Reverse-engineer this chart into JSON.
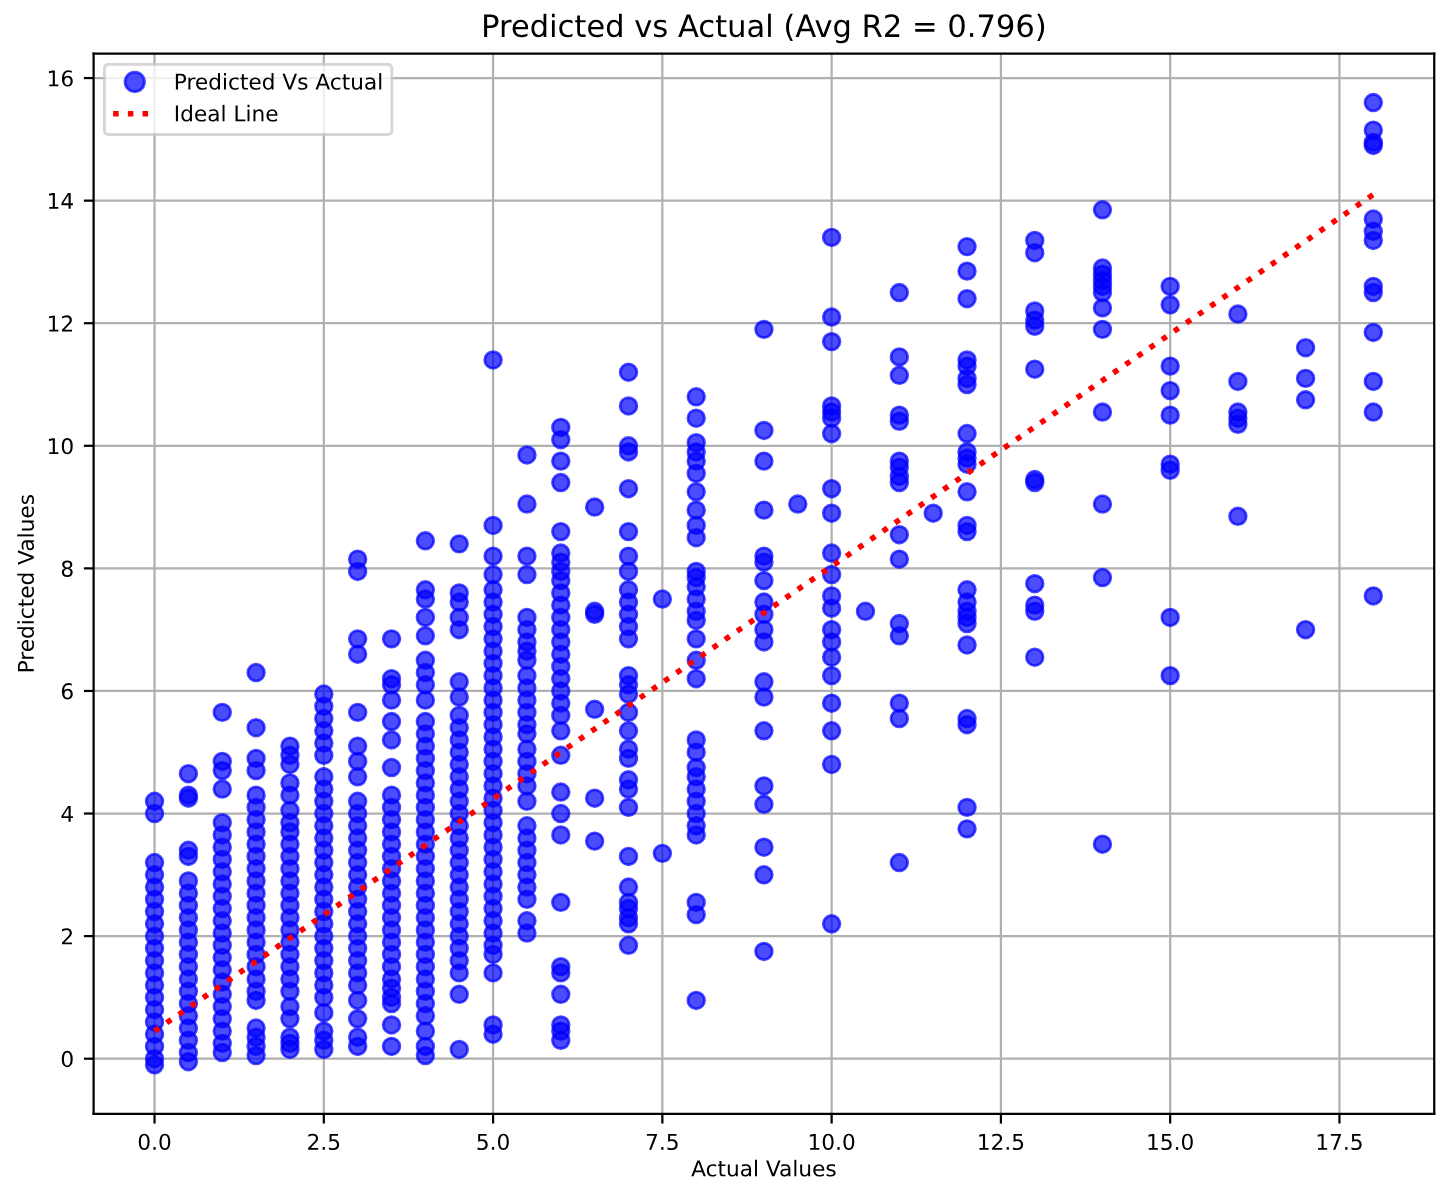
{
  "chart_data": {
    "type": "scatter",
    "title": "Predicted vs Actual (Avg R2 = 0.796)",
    "xlabel": "Actual Values",
    "ylabel": "Predicted Values",
    "xlim": [
      -0.9,
      18.9
    ],
    "ylim": [
      -0.9,
      16.4
    ],
    "xticks": [
      {
        "value": 0,
        "label": "0.0"
      },
      2.5,
      {
        "value": 5,
        "label": "5.0"
      },
      7.5,
      {
        "value": 10,
        "label": "10.0"
      },
      12.5,
      {
        "value": 15,
        "label": "15.0"
      },
      17.5
    ],
    "yticks": [
      0,
      2,
      4,
      6,
      8,
      10,
      12,
      14,
      16
    ],
    "grid": true,
    "legend": "top left",
    "series": [
      {
        "name": "Predicted Vs Actual",
        "marker": "circle",
        "color": "#0000ff",
        "x": [
          0,
          0,
          0,
          0,
          0,
          0,
          0,
          0,
          0,
          0,
          0,
          0,
          0,
          0,
          0,
          0,
          0,
          0,
          0,
          0,
          0.5,
          0.5,
          0.5,
          0.5,
          0.5,
          0.5,
          0.5,
          0.5,
          0.5,
          0.5,
          0.5,
          0.5,
          0.5,
          0.5,
          0.5,
          0.5,
          0.5,
          0.5,
          0.5,
          0.5,
          0.5,
          1,
          1,
          1,
          1,
          1,
          1,
          1,
          1,
          1,
          1,
          1,
          1,
          1,
          1,
          1,
          1,
          1,
          1,
          1,
          1,
          1,
          1,
          1,
          1,
          1.5,
          1.5,
          1.5,
          1.5,
          1.5,
          1.5,
          1.5,
          1.5,
          1.5,
          1.5,
          1.5,
          1.5,
          1.5,
          1.5,
          1.5,
          1.5,
          1.5,
          1.5,
          1.5,
          1.5,
          1.5,
          1.5,
          1.5,
          1.5,
          1.5,
          1.5,
          2,
          2,
          2,
          2,
          2,
          2,
          2,
          2,
          2,
          2,
          2,
          2,
          2,
          2,
          2,
          2,
          2,
          2,
          2,
          2,
          2,
          2,
          2,
          2,
          2,
          2,
          2.5,
          2.5,
          2.5,
          2.5,
          2.5,
          2.5,
          2.5,
          2.5,
          2.5,
          2.5,
          2.5,
          2.5,
          2.5,
          2.5,
          2.5,
          2.5,
          2.5,
          2.5,
          2.5,
          2.5,
          2.5,
          2.5,
          2.5,
          2.5,
          2.5,
          2.5,
          2.5,
          2.5,
          2.5,
          3,
          3,
          3,
          3,
          3,
          3,
          3,
          3,
          3,
          3,
          3,
          3,
          3,
          3,
          3,
          3,
          3,
          3,
          3,
          3,
          3,
          3,
          3,
          3,
          3,
          3,
          3,
          3,
          3.5,
          3.5,
          3.5,
          3.5,
          3.5,
          3.5,
          3.5,
          3.5,
          3.5,
          3.5,
          3.5,
          3.5,
          3.5,
          3.5,
          3.5,
          3.5,
          3.5,
          3.5,
          3.5,
          3.5,
          3.5,
          3.5,
          3.5,
          3.5,
          3.5,
          3.5,
          3.5,
          3.5,
          4,
          4,
          4,
          4,
          4,
          4,
          4,
          4,
          4,
          4,
          4,
          4,
          4,
          4,
          4,
          4,
          4,
          4,
          4,
          4,
          4,
          4,
          4,
          4,
          4,
          4,
          4,
          4,
          4,
          4,
          4,
          4,
          4,
          4,
          4,
          4,
          4,
          4.5,
          4.5,
          4.5,
          4.5,
          4.5,
          4.5,
          4.5,
          4.5,
          4.5,
          4.5,
          4.5,
          4.5,
          4.5,
          4.5,
          4.5,
          4.5,
          4.5,
          4.5,
          4.5,
          4.5,
          4.5,
          4.5,
          4.5,
          4.5,
          4.5,
          4.5,
          4.5,
          4.5,
          4.5,
          4.5,
          4.5,
          5,
          5,
          5,
          5,
          5,
          5,
          5,
          5,
          5,
          5,
          5,
          5,
          5,
          5,
          5,
          5,
          5,
          5,
          5,
          5,
          5,
          5,
          5,
          5,
          5,
          5,
          5,
          5,
          5,
          5,
          5,
          5,
          5,
          5,
          5,
          5,
          5,
          5,
          5.5,
          5.5,
          5.5,
          5.5,
          5.5,
          5.5,
          5.5,
          5.5,
          5.5,
          5.5,
          5.5,
          5.5,
          5.5,
          5.5,
          5.5,
          5.5,
          5.5,
          5.5,
          5.5,
          5.5,
          5.5,
          5.5,
          5.5,
          5.5,
          5.5,
          5.5,
          5.5,
          5.5,
          5.5,
          6,
          6,
          6,
          6,
          6,
          6,
          6,
          6,
          6,
          6,
          6,
          6,
          6,
          6,
          6,
          6,
          6,
          6,
          6,
          6,
          6,
          6,
          6,
          6,
          6,
          6,
          6,
          6,
          6,
          6,
          6,
          6,
          6.5,
          6.5,
          6.5,
          6.5,
          6.5,
          6.5,
          7,
          7,
          7,
          7,
          7,
          7,
          7,
          7,
          7,
          7,
          7,
          7,
          7,
          7,
          7,
          7,
          7,
          7,
          7,
          7,
          7,
          7,
          7,
          7,
          7,
          7,
          7,
          7,
          7,
          7,
          7.5,
          7.5,
          8,
          8,
          8,
          8,
          8,
          8,
          8,
          8,
          8,
          8,
          8,
          8,
          8,
          8,
          8,
          8,
          8,
          8,
          8,
          8,
          8,
          8,
          8,
          8,
          8,
          8,
          8,
          8,
          8,
          8,
          8,
          9,
          9,
          9,
          9,
          9,
          9,
          9,
          9,
          9,
          9,
          9,
          9,
          9,
          9,
          9,
          9,
          9,
          9,
          9,
          9.5,
          10,
          10,
          10,
          10,
          10,
          10,
          10,
          10,
          10,
          10,
          10,
          10,
          10,
          10,
          10,
          10,
          10,
          10,
          10,
          10,
          10,
          10.5,
          11,
          11,
          11,
          11,
          11,
          11,
          11,
          11,
          11,
          11,
          11,
          11,
          11,
          11,
          11,
          11,
          11.5,
          12,
          12,
          12,
          12,
          12,
          12,
          12,
          12,
          12,
          12,
          12,
          12,
          12,
          12,
          12,
          12,
          12,
          12,
          12,
          12,
          12,
          12,
          12,
          12,
          13,
          13,
          13,
          13,
          13,
          13,
          13,
          13,
          13,
          13,
          13,
          13,
          14,
          14,
          14,
          14,
          14,
          14,
          14,
          14,
          14,
          14,
          14,
          14,
          15,
          15,
          15,
          15,
          15,
          15,
          15,
          15,
          15,
          16,
          16,
          16,
          16,
          16,
          16,
          17,
          17,
          17,
          17,
          18,
          18,
          18,
          18,
          18,
          18,
          18,
          18,
          18,
          18,
          18,
          18,
          18
        ],
        "values": [
          4.2,
          4.0,
          3.2,
          3.0,
          2.8,
          2.6,
          2.4,
          2.2,
          2.0,
          1.8,
          1.6,
          1.4,
          1.2,
          1.0,
          0.8,
          0.6,
          0.4,
          0.2,
          0.0,
          -0.1,
          4.65,
          4.3,
          4.25,
          3.4,
          3.3,
          2.9,
          2.7,
          2.5,
          2.3,
          2.1,
          1.9,
          1.7,
          1.5,
          1.3,
          1.1,
          0.9,
          0.7,
          0.5,
          0.3,
          0.1,
          -0.05,
          5.65,
          4.85,
          4.7,
          4.4,
          3.85,
          3.65,
          3.45,
          3.25,
          3.05,
          2.85,
          2.65,
          2.45,
          2.25,
          2.05,
          1.85,
          1.65,
          1.45,
          1.25,
          1.05,
          0.85,
          0.65,
          0.45,
          0.25,
          0.1,
          6.3,
          5.4,
          4.9,
          4.7,
          4.3,
          4.1,
          3.9,
          3.7,
          3.5,
          3.3,
          3.1,
          2.9,
          2.7,
          2.5,
          2.3,
          2.1,
          1.9,
          1.7,
          1.5,
          1.3,
          1.1,
          0.95,
          0.5,
          0.35,
          0.2,
          0.05,
          5.1,
          4.95,
          4.8,
          4.5,
          4.3,
          4.05,
          3.85,
          3.7,
          3.5,
          3.3,
          3.1,
          2.9,
          2.7,
          2.5,
          2.3,
          2.1,
          1.9,
          1.7,
          1.5,
          1.3,
          1.1,
          0.85,
          0.65,
          0.35,
          0.25,
          0.15,
          5.95,
          5.75,
          5.55,
          5.35,
          5.15,
          4.95,
          4.6,
          4.4,
          4.2,
          4.0,
          3.8,
          3.6,
          3.4,
          3.2,
          3.0,
          2.8,
          2.6,
          2.4,
          2.2,
          2.0,
          1.8,
          1.6,
          1.4,
          1.2,
          1.0,
          0.75,
          0.45,
          0.3,
          0.15,
          8.15,
          7.95,
          6.85,
          6.6,
          5.65,
          5.1,
          4.85,
          4.6,
          4.2,
          4.0,
          3.8,
          3.6,
          3.4,
          3.2,
          3.0,
          2.8,
          2.6,
          2.4,
          2.2,
          2.0,
          1.8,
          1.6,
          1.4,
          1.2,
          0.95,
          0.65,
          0.35,
          0.2,
          6.85,
          6.2,
          6.1,
          5.85,
          5.5,
          5.2,
          4.75,
          4.3,
          4.1,
          3.9,
          3.7,
          3.5,
          3.3,
          3.1,
          2.9,
          2.7,
          2.5,
          2.3,
          2.1,
          1.9,
          1.7,
          1.5,
          1.3,
          1.15,
          1.0,
          0.9,
          0.55,
          0.2,
          8.45,
          7.65,
          7.5,
          7.2,
          6.9,
          6.5,
          6.3,
          6.1,
          5.85,
          5.5,
          5.3,
          5.1,
          4.9,
          4.7,
          4.5,
          4.3,
          4.1,
          3.9,
          3.7,
          3.5,
          3.3,
          3.1,
          2.9,
          2.7,
          2.5,
          2.3,
          2.1,
          1.9,
          1.7,
          1.5,
          1.3,
          1.1,
          0.9,
          0.7,
          0.45,
          0.2,
          0.05,
          8.4,
          7.6,
          7.45,
          7.2,
          7.0,
          6.15,
          5.9,
          5.6,
          5.4,
          5.2,
          5.0,
          4.8,
          4.6,
          4.4,
          4.2,
          4.0,
          3.8,
          3.6,
          3.4,
          3.2,
          3.0,
          2.8,
          2.6,
          2.4,
          2.2,
          2.0,
          1.8,
          1.6,
          1.4,
          1.05,
          0.15,
          11.4,
          8.7,
          8.2,
          7.9,
          7.65,
          7.45,
          7.25,
          7.05,
          6.85,
          6.65,
          6.45,
          6.25,
          6.05,
          5.85,
          5.65,
          5.45,
          5.25,
          5.05,
          4.85,
          4.65,
          4.45,
          4.25,
          4.05,
          3.85,
          3.65,
          3.45,
          3.25,
          3.05,
          2.85,
          2.65,
          2.45,
          2.25,
          2.05,
          1.85,
          1.7,
          1.4,
          0.55,
          0.4,
          9.85,
          9.05,
          8.2,
          7.9,
          7.2,
          7.0,
          6.8,
          6.65,
          6.5,
          6.25,
          6.05,
          5.85,
          5.65,
          5.45,
          5.3,
          5.05,
          4.85,
          4.65,
          4.45,
          4.2,
          3.8,
          3.6,
          3.4,
          3.2,
          3.0,
          2.8,
          2.6,
          2.25,
          2.05,
          10.3,
          10.1,
          9.75,
          9.4,
          8.6,
          8.25,
          8.1,
          7.95,
          7.8,
          7.6,
          7.4,
          7.2,
          7.0,
          6.8,
          6.6,
          6.4,
          6.2,
          6.0,
          5.8,
          5.6,
          5.35,
          4.95,
          4.35,
          4.0,
          3.65,
          2.55,
          1.5,
          1.4,
          1.05,
          0.55,
          0.45,
          0.3,
          9.0,
          7.3,
          7.25,
          5.7,
          4.25,
          3.55,
          11.2,
          10.65,
          10.0,
          9.9,
          9.3,
          8.6,
          8.2,
          7.95,
          7.65,
          7.45,
          7.25,
          7.05,
          6.85,
          6.25,
          6.1,
          5.95,
          5.65,
          5.35,
          5.05,
          4.9,
          4.55,
          4.4,
          4.1,
          3.3,
          2.8,
          2.55,
          2.45,
          2.3,
          2.2,
          1.85,
          7.5,
          3.35,
          10.8,
          10.45,
          10.05,
          9.9,
          9.75,
          9.55,
          9.25,
          8.95,
          8.7,
          8.5,
          7.95,
          7.85,
          7.7,
          7.5,
          7.3,
          7.15,
          6.85,
          6.5,
          6.2,
          5.2,
          5.0,
          4.75,
          4.6,
          4.4,
          4.2,
          4.0,
          3.8,
          3.65,
          2.55,
          2.35,
          0.95,
          11.9,
          10.25,
          9.75,
          8.95,
          8.2,
          8.1,
          7.8,
          7.45,
          7.25,
          7.0,
          6.8,
          6.15,
          5.9,
          5.35,
          4.45,
          4.15,
          3.45,
          3.0,
          1.75,
          9.05,
          13.4,
          12.1,
          11.7,
          10.65,
          10.55,
          10.45,
          10.2,
          9.3,
          8.9,
          8.25,
          7.9,
          7.55,
          7.35,
          7.0,
          6.8,
          6.55,
          6.25,
          5.8,
          5.35,
          4.8,
          2.2,
          7.3,
          12.5,
          11.45,
          11.15,
          10.5,
          10.4,
          9.75,
          9.65,
          9.5,
          9.4,
          8.55,
          8.15,
          7.1,
          6.9,
          5.8,
          5.55,
          3.2,
          8.9,
          13.25,
          12.85,
          12.4,
          11.4,
          11.3,
          11.1,
          11.0,
          10.2,
          9.9,
          9.8,
          9.7,
          9.25,
          8.7,
          8.6,
          7.65,
          7.45,
          7.3,
          7.2,
          7.1,
          6.75,
          5.55,
          5.45,
          4.1,
          3.75,
          13.35,
          13.15,
          12.2,
          12.05,
          11.95,
          11.25,
          9.45,
          9.4,
          7.75,
          7.4,
          7.3,
          6.55,
          13.85,
          12.9,
          12.8,
          12.7,
          12.6,
          12.5,
          12.25,
          11.9,
          10.55,
          9.05,
          7.85,
          3.5,
          12.6,
          12.3,
          11.3,
          10.9,
          10.5,
          9.7,
          9.6,
          7.2,
          6.25,
          12.15,
          11.05,
          10.55,
          10.45,
          10.35,
          8.85,
          11.6,
          11.1,
          10.75,
          7.0,
          15.6,
          15.15,
          14.95,
          14.9,
          13.7,
          13.5,
          13.35,
          12.6,
          12.5,
          11.85,
          11.05,
          10.55,
          7.55
        ]
      },
      {
        "name": "Ideal Line",
        "type": "line",
        "line_style": "dotted",
        "color": "#ff0000",
        "x": [
          0,
          18
        ],
        "values": [
          0.45,
          14.1
        ]
      }
    ]
  }
}
